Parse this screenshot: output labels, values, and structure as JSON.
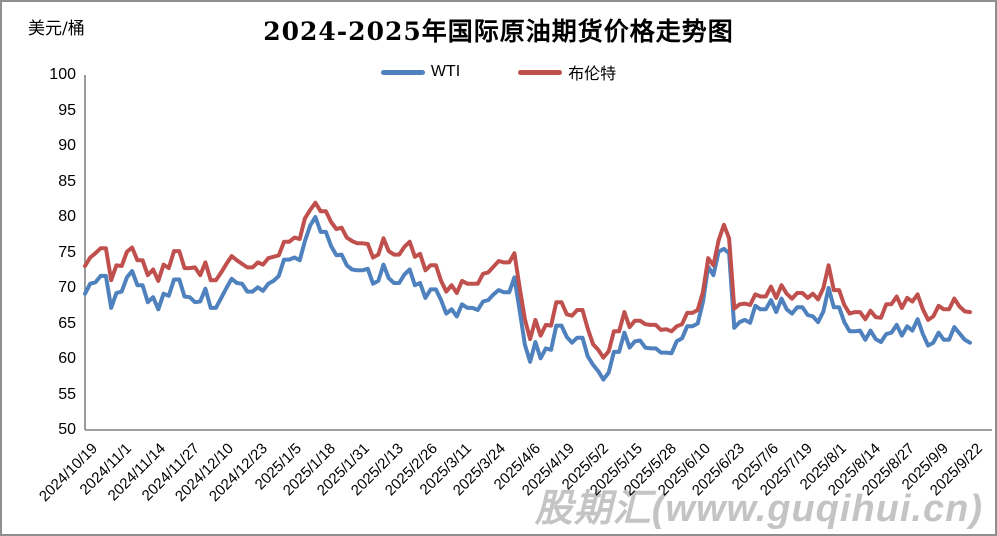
{
  "header": {
    "unit_label": "美元/桶",
    "title": "2024-2025年国际原油期货价格走势图"
  },
  "legend": [
    {
      "label": "WTI",
      "color": "#4E81BD"
    },
    {
      "label": "布伦特",
      "color": "#C0504D"
    }
  ],
  "watermark": {
    "text": "股期汇(www.guqihui.cn)"
  },
  "chart_data": {
    "type": "line",
    "title": "2024-2025年国际原油期货价格走势图",
    "ylabel": "美元/桶",
    "xlabel": "",
    "ylim": [
      50,
      100
    ],
    "y_ticks": [
      100,
      95,
      90,
      85,
      80,
      75,
      70,
      65,
      60,
      55,
      50
    ],
    "grid": false,
    "legend_position": "top",
    "x_start": "2024/10/19",
    "x_end": "2025/9/22",
    "sample_interval_days": 2,
    "total_days": 338,
    "x_tick_labels": [
      "2024/10/19",
      "2024/11/1",
      "2024/11/14",
      "2024/11/27",
      "2024/12/10",
      "2024/12/23",
      "2025/1/5",
      "2025/1/18",
      "2025/1/31",
      "2025/2/13",
      "2025/2/26",
      "2025/3/11",
      "2025/3/24",
      "2025/4/6",
      "2025/4/19",
      "2025/5/2",
      "2025/5/15",
      "2025/5/28",
      "2025/6/10",
      "2025/6/23",
      "2025/7/6",
      "2025/7/19",
      "2025/8/1",
      "2025/8/14",
      "2025/8/27",
      "2025/9/9",
      "2025/9/22"
    ],
    "series": [
      {
        "name": "WTI",
        "color": "#4E81BD",
        "values": [
          69.2,
          70.6,
          70.8,
          71.7,
          71.7,
          67.2,
          69.3,
          69.5,
          71.5,
          72.4,
          70.4,
          70.4,
          68.0,
          68.7,
          67.0,
          69.2,
          68.9,
          71.2,
          71.2,
          68.8,
          68.7,
          68.0,
          68.1,
          69.9,
          67.2,
          67.2,
          68.6,
          70.0,
          71.3,
          70.7,
          70.6,
          69.5,
          69.5,
          70.1,
          69.6,
          70.6,
          71.0,
          71.7,
          74.0,
          74.0,
          74.3,
          73.9,
          76.6,
          78.8,
          80.0,
          77.9,
          77.9,
          75.9,
          74.6,
          74.7,
          73.2,
          72.6,
          72.5,
          72.5,
          72.7,
          70.6,
          71.0,
          73.3,
          71.4,
          70.7,
          70.7,
          71.9,
          72.6,
          70.4,
          70.7,
          68.6,
          69.8,
          69.8,
          68.3,
          66.4,
          67.0,
          66.0,
          67.7,
          67.2,
          67.2,
          66.9,
          68.1,
          68.3,
          69.1,
          69.7,
          69.4,
          69.4,
          71.5,
          66.9,
          62.0,
          59.6,
          62.4,
          60.1,
          61.5,
          61.3,
          64.7,
          64.7,
          63.1,
          62.3,
          63.0,
          63.0,
          60.4,
          59.2,
          58.3,
          57.1,
          58.1,
          61.0,
          61.0,
          63.7,
          61.6,
          62.5,
          62.6,
          61.6,
          61.5,
          61.5,
          60.9,
          60.9,
          60.8,
          62.5,
          62.9,
          64.6,
          64.6,
          65.0,
          68.0,
          73.0,
          71.8,
          75.1,
          75.5,
          74.9,
          64.4,
          65.2,
          65.5,
          65.1,
          67.5,
          67.0,
          67.0,
          68.3,
          66.6,
          68.5,
          67.0,
          66.4,
          67.3,
          67.3,
          66.2,
          66.0,
          65.2,
          66.7,
          70.0,
          67.3,
          67.3,
          65.2,
          63.9,
          63.9,
          64.0,
          62.7,
          64.0,
          62.8,
          62.4,
          63.5,
          63.7,
          64.8,
          63.3,
          64.6,
          64.0,
          65.6,
          63.5,
          61.9,
          62.3,
          63.7,
          62.7,
          62.7,
          64.5,
          63.6,
          62.7,
          62.3
        ]
      },
      {
        "name": "布伦特",
        "color": "#C0504D",
        "values": [
          73.1,
          74.3,
          74.9,
          75.6,
          75.6,
          71.1,
          73.2,
          73.1,
          75.1,
          75.7,
          73.9,
          73.9,
          71.8,
          72.6,
          71.0,
          73.3,
          72.8,
          75.2,
          75.2,
          72.8,
          72.8,
          72.9,
          71.8,
          73.6,
          71.1,
          71.1,
          72.2,
          73.4,
          74.5,
          73.9,
          73.4,
          72.9,
          72.9,
          73.6,
          73.3,
          74.2,
          74.4,
          74.6,
          76.5,
          76.5,
          77.1,
          76.9,
          79.8,
          81.0,
          82.0,
          80.8,
          80.8,
          79.3,
          78.3,
          78.5,
          77.1,
          76.6,
          76.3,
          76.3,
          76.2,
          74.3,
          74.7,
          77.0,
          75.2,
          74.7,
          74.7,
          75.8,
          76.5,
          74.4,
          74.8,
          72.5,
          73.2,
          73.2,
          71.0,
          69.5,
          70.4,
          69.3,
          71.0,
          70.6,
          70.6,
          70.6,
          72.0,
          72.2,
          73.0,
          73.8,
          73.6,
          73.6,
          74.9,
          70.1,
          65.6,
          62.8,
          65.5,
          63.3,
          64.8,
          64.7,
          68.0,
          68.0,
          66.3,
          66.1,
          66.9,
          66.9,
          64.3,
          62.1,
          61.3,
          60.2,
          61.1,
          63.9,
          63.9,
          66.6,
          64.5,
          65.4,
          65.4,
          64.9,
          64.8,
          64.8,
          64.1,
          64.2,
          63.9,
          64.6,
          64.9,
          66.5,
          66.5,
          66.9,
          69.4,
          74.2,
          73.2,
          76.7,
          78.9,
          77.0,
          67.1,
          67.7,
          67.8,
          67.6,
          69.1,
          68.8,
          68.8,
          70.2,
          68.6,
          70.4,
          69.2,
          68.5,
          69.3,
          69.3,
          68.6,
          69.2,
          68.4,
          70.0,
          73.2,
          69.7,
          69.7,
          67.6,
          66.4,
          66.6,
          66.6,
          65.6,
          66.8,
          65.9,
          65.8,
          67.7,
          67.7,
          68.8,
          67.2,
          68.6,
          68.1,
          69.1,
          67.0,
          65.5,
          66.0,
          67.5,
          67.0,
          67.0,
          68.5,
          67.4,
          66.7,
          66.6
        ]
      }
    ]
  }
}
